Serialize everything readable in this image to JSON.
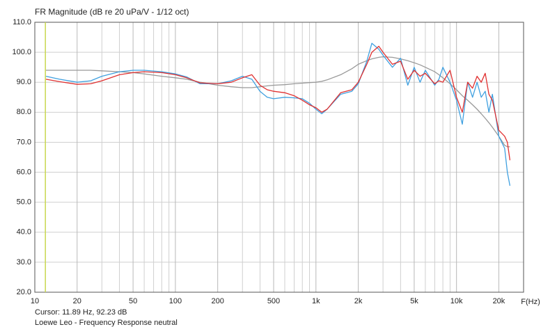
{
  "chart_data": {
    "type": "line",
    "title": "FR Magnitude (dB re 20 uPa/V - 1/12 oct)",
    "x_label": "F(Hz)",
    "cursor_text": "Cursor: 11.89 Hz, 92.23 dB",
    "cursor_x": 11.89,
    "cursor_color": "#c8d850",
    "footer": "Loewe Leo - Frequency Response neutral",
    "x_scale": "log",
    "xlim": [
      10,
      30000
    ],
    "ylim": [
      20,
      110
    ],
    "xticks": [
      10,
      20,
      50,
      100,
      200,
      500,
      {
        "value": 1000,
        "label": "1k"
      },
      {
        "value": 2000,
        "label": "2k"
      },
      {
        "value": 5000,
        "label": "5k"
      },
      {
        "value": 10000,
        "label": "10k"
      },
      {
        "value": 20000,
        "label": "20k"
      }
    ],
    "x_minor_ticks": [
      30,
      40,
      60,
      70,
      80,
      90,
      300,
      400,
      600,
      700,
      800,
      900,
      3000,
      4000,
      6000,
      7000,
      8000,
      9000
    ],
    "yticks": [
      {
        "value": 20,
        "label": "20.0"
      },
      {
        "value": 30,
        "label": "30.0"
      },
      {
        "value": 40,
        "label": "40.0"
      },
      {
        "value": 50,
        "label": "50.0"
      },
      {
        "value": 60,
        "label": "60.0"
      },
      {
        "value": 70,
        "label": "70.0"
      },
      {
        "value": 80,
        "label": "80.0"
      },
      {
        "value": 90,
        "label": "90.0"
      },
      {
        "value": 100,
        "label": "100.0"
      },
      {
        "value": 110,
        "label": "110.0"
      }
    ],
    "grid": true,
    "x": [
      12,
      15,
      20,
      25,
      30,
      40,
      50,
      60,
      80,
      100,
      120,
      150,
      200,
      250,
      300,
      350,
      400,
      450,
      500,
      600,
      700,
      800,
      900,
      1000,
      1100,
      1200,
      1500,
      1800,
      2000,
      2300,
      2500,
      2800,
      3000,
      3500,
      4000,
      4500,
      5000,
      5500,
      6000,
      7000,
      7500,
      8000,
      9000,
      10000,
      11000,
      12000,
      13000,
      14000,
      15000,
      16000,
      17000,
      18000,
      20000,
      22000,
      23000,
      24000
    ],
    "series": [
      {
        "color": "#999999",
        "values": [
          94,
          94,
          94,
          94,
          93.8,
          93.5,
          93.2,
          92.8,
          92,
          91.5,
          91,
          90,
          89,
          88.5,
          88.2,
          88.2,
          88.5,
          88.8,
          89,
          89.2,
          89.5,
          89.7,
          89.9,
          90,
          90.3,
          90.8,
          92.5,
          94.5,
          96,
          97.2,
          97.8,
          98.3,
          98.5,
          98.3,
          97.8,
          97.2,
          96.5,
          95.8,
          95,
          93.5,
          92.5,
          91.5,
          89.5,
          87.5,
          85.5,
          84,
          82.5,
          81,
          79.5,
          78,
          76.5,
          75,
          72,
          69,
          68.5,
          68.5
        ]
      },
      {
        "color": "#3fa0e0",
        "values": [
          92,
          91,
          90,
          90.5,
          92,
          93.5,
          94,
          94,
          93.5,
          92.8,
          91.8,
          89.5,
          89.5,
          90.5,
          92,
          91,
          87,
          85,
          84.5,
          85,
          84.8,
          84.5,
          83,
          81,
          79.5,
          81,
          86,
          87,
          89.5,
          97,
          103,
          101,
          99,
          95,
          98,
          89,
          95,
          90,
          94,
          89,
          91,
          95,
          90,
          84,
          76,
          90,
          85,
          90,
          85,
          87,
          80,
          86,
          72,
          68,
          60,
          55.5
        ]
      },
      {
        "color": "#e03030",
        "values": [
          91,
          90.2,
          89.3,
          89.5,
          90.5,
          92.5,
          93.2,
          93.5,
          93.2,
          92.5,
          91.5,
          89.8,
          89.5,
          90,
          91.5,
          92.5,
          89,
          87.5,
          87,
          86.5,
          85.5,
          84,
          82.5,
          81.5,
          80,
          81,
          86.5,
          87.5,
          90,
          96,
          100,
          102,
          100,
          96,
          97,
          91,
          94,
          92,
          93,
          89.5,
          90.5,
          90,
          94,
          85,
          80,
          90,
          88,
          92,
          90,
          93,
          86,
          84,
          74,
          72,
          70,
          64
        ]
      }
    ]
  }
}
